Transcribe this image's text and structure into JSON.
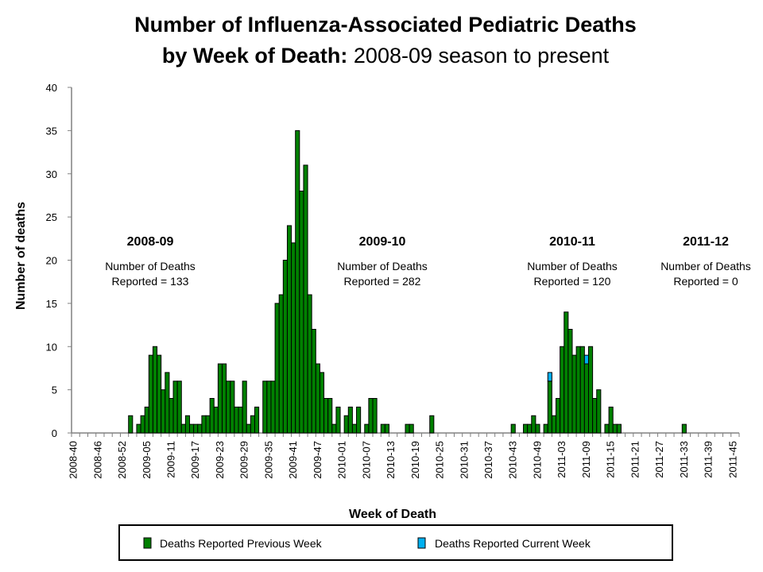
{
  "chart_data": {
    "type": "bar",
    "stacked": true,
    "title_bold": "Number of Influenza-Associated Pediatric Deaths",
    "title_line2_bold": "by Week of Death:",
    "title_line2_regular": " 2008-09 season to present",
    "xlabel": "Week of Death",
    "ylabel": "Number of deaths",
    "ylim": [
      0,
      40
    ],
    "yticks": [
      0,
      5,
      10,
      15,
      20,
      25,
      30,
      35,
      40
    ],
    "grid": false,
    "legend_placement": "bottom",
    "tick_label_every": 6,
    "categories": [
      "2008-40",
      "2008-41",
      "2008-42",
      "2008-43",
      "2008-44",
      "2008-45",
      "2008-46",
      "2008-47",
      "2008-48",
      "2008-49",
      "2008-50",
      "2008-51",
      "2008-52",
      "2008-53",
      "2009-01",
      "2009-02",
      "2009-03",
      "2009-04",
      "2009-05",
      "2009-06",
      "2009-07",
      "2009-08",
      "2009-09",
      "2009-10",
      "2009-11",
      "2009-12",
      "2009-13",
      "2009-14",
      "2009-15",
      "2009-16",
      "2009-17",
      "2009-18",
      "2009-19",
      "2009-20",
      "2009-21",
      "2009-22",
      "2009-23",
      "2009-24",
      "2009-25",
      "2009-26",
      "2009-27",
      "2009-28",
      "2009-29",
      "2009-30",
      "2009-31",
      "2009-32",
      "2009-33",
      "2009-34",
      "2009-35",
      "2009-36",
      "2009-37",
      "2009-38",
      "2009-39",
      "2009-40",
      "2009-41",
      "2009-42",
      "2009-43",
      "2009-44",
      "2009-45",
      "2009-46",
      "2009-47",
      "2009-48",
      "2009-49",
      "2009-50",
      "2009-51",
      "2009-52",
      "2010-01",
      "2010-02",
      "2010-03",
      "2010-04",
      "2010-05",
      "2010-06",
      "2010-07",
      "2010-08",
      "2010-09",
      "2010-10",
      "2010-11",
      "2010-12",
      "2010-13",
      "2010-14",
      "2010-15",
      "2010-16",
      "2010-17",
      "2010-18",
      "2010-19",
      "2010-20",
      "2010-21",
      "2010-22",
      "2010-23",
      "2010-24",
      "2010-25",
      "2010-26",
      "2010-27",
      "2010-28",
      "2010-29",
      "2010-30",
      "2010-31",
      "2010-32",
      "2010-33",
      "2010-34",
      "2010-35",
      "2010-36",
      "2010-37",
      "2010-38",
      "2010-39",
      "2010-40",
      "2010-41",
      "2010-42",
      "2010-43",
      "2010-44",
      "2010-45",
      "2010-46",
      "2010-47",
      "2010-48",
      "2010-49",
      "2010-50",
      "2010-51",
      "2010-52",
      "2011-01",
      "2011-02",
      "2011-03",
      "2011-04",
      "2011-05",
      "2011-06",
      "2011-07",
      "2011-08",
      "2011-09",
      "2011-10",
      "2011-11",
      "2011-12",
      "2011-13",
      "2011-14",
      "2011-15",
      "2011-16",
      "2011-17",
      "2011-18",
      "2011-19",
      "2011-20",
      "2011-21",
      "2011-22",
      "2011-23",
      "2011-24",
      "2011-25",
      "2011-26",
      "2011-27",
      "2011-28",
      "2011-29",
      "2011-30",
      "2011-31",
      "2011-32",
      "2011-33",
      "2011-34",
      "2011-35",
      "2011-36",
      "2011-37",
      "2011-38",
      "2011-39",
      "2011-40",
      "2011-41",
      "2011-42",
      "2011-43",
      "2011-44",
      "2011-45",
      "2011-46"
    ],
    "series": [
      {
        "name": "Deaths Reported Previous Week",
        "color": "#008000",
        "values": [
          0,
          0,
          0,
          0,
          0,
          0,
          0,
          0,
          0,
          0,
          0,
          0,
          0,
          0,
          2,
          0,
          1,
          2,
          3,
          9,
          10,
          9,
          5,
          7,
          4,
          6,
          6,
          1,
          2,
          1,
          1,
          1,
          2,
          2,
          4,
          3,
          8,
          8,
          6,
          6,
          3,
          3,
          6,
          1,
          2,
          3,
          0,
          6,
          6,
          6,
          15,
          16,
          20,
          24,
          22,
          35,
          28,
          31,
          16,
          12,
          8,
          7,
          4,
          4,
          1,
          3,
          0,
          2,
          3,
          1,
          3,
          0,
          1,
          4,
          4,
          0,
          1,
          1,
          0,
          0,
          0,
          0,
          1,
          1,
          0,
          0,
          0,
          0,
          2,
          0,
          0,
          0,
          0,
          0,
          0,
          0,
          0,
          0,
          0,
          0,
          0,
          0,
          0,
          0,
          0,
          0,
          0,
          0,
          1,
          0,
          0,
          1,
          1,
          2,
          1,
          0,
          1,
          6,
          2,
          4,
          10,
          14,
          12,
          9,
          10,
          10,
          8,
          10,
          4,
          5,
          0,
          1,
          3,
          1,
          1,
          0,
          0,
          0,
          0,
          0,
          0,
          0,
          0,
          0,
          0,
          0,
          0,
          0,
          0,
          0,
          1,
          0,
          0,
          0,
          0,
          0,
          0,
          0,
          0,
          0,
          0,
          0,
          0,
          0
        ]
      },
      {
        "name": "Deaths Reported Current Week",
        "color": "#00B0F0",
        "values": [
          0,
          0,
          0,
          0,
          0,
          0,
          0,
          0,
          0,
          0,
          0,
          0,
          0,
          0,
          0,
          0,
          0,
          0,
          0,
          0,
          0,
          0,
          0,
          0,
          0,
          0,
          0,
          0,
          0,
          0,
          0,
          0,
          0,
          0,
          0,
          0,
          0,
          0,
          0,
          0,
          0,
          0,
          0,
          0,
          0,
          0,
          0,
          0,
          0,
          0,
          0,
          0,
          0,
          0,
          0,
          0,
          0,
          0,
          0,
          0,
          0,
          0,
          0,
          0,
          0,
          0,
          0,
          0,
          0,
          0,
          0,
          0,
          0,
          0,
          0,
          0,
          0,
          0,
          0,
          0,
          0,
          0,
          0,
          0,
          0,
          0,
          0,
          0,
          0,
          0,
          0,
          0,
          0,
          0,
          0,
          0,
          0,
          0,
          0,
          0,
          0,
          0,
          0,
          0,
          0,
          0,
          0,
          0,
          0,
          0,
          0,
          0,
          0,
          0,
          0,
          0,
          0,
          1,
          0,
          0,
          0,
          0,
          0,
          0,
          0,
          0,
          1,
          0,
          0,
          0,
          0,
          0,
          0,
          0,
          0,
          0,
          0,
          0,
          0,
          0,
          0,
          0,
          0,
          0,
          0,
          0,
          0,
          0,
          0,
          0,
          0,
          0,
          0,
          0,
          0,
          0,
          0,
          0,
          0,
          0,
          0,
          0,
          0,
          0
        ]
      }
    ],
    "annotations": [
      {
        "season": "2008-09",
        "line1": "Number of Deaths",
        "line2": "Reported = 133"
      },
      {
        "season": "2009-10",
        "line1": "Number of Deaths",
        "line2": "Reported = 282"
      },
      {
        "season": "2010-11",
        "line1": "Number of Deaths",
        "line2": "Reported = 120"
      },
      {
        "season": "2011-12",
        "line1": "Number of Deaths",
        "line2": "Reported = 0"
      }
    ]
  }
}
